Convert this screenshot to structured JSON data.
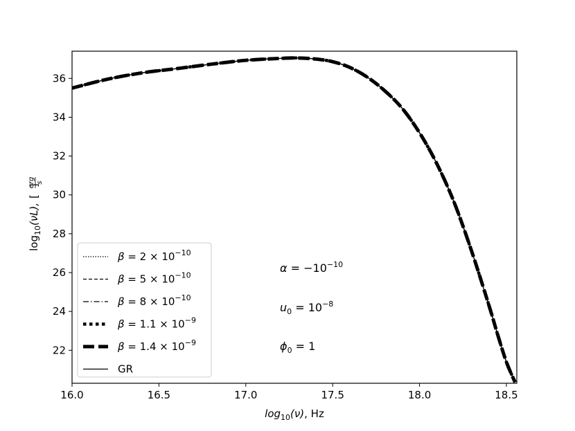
{
  "chart_data": {
    "type": "line",
    "xlabel": {
      "fn": "log",
      "sub": "10",
      "arg": "(ν)",
      "unit": ",  Hz"
    },
    "ylabel": {
      "fn": "log",
      "sub": "10",
      "arg": "(νL),",
      "unit_num": "erg",
      "unit_den": "s"
    },
    "xlim": [
      16.0,
      18.56
    ],
    "ylim": [
      20.3,
      37.4
    ],
    "x_ticks": [
      "16.0",
      "16.5",
      "17.0",
      "17.5",
      "18.0",
      "18.5"
    ],
    "y_ticks": [
      "22",
      "24",
      "26",
      "28",
      "30",
      "32",
      "34",
      "36"
    ],
    "grid": false,
    "legend_position": "lower-left",
    "x": [
      16.0,
      16.2,
      16.4,
      16.6,
      16.8,
      17.0,
      17.2,
      17.3,
      17.4,
      17.5,
      17.6,
      17.7,
      17.8,
      17.9,
      18.0,
      18.1,
      18.2,
      18.3,
      18.4,
      18.45,
      18.5,
      18.55
    ],
    "y_gr": [
      35.5,
      35.95,
      36.28,
      36.5,
      36.73,
      36.93,
      37.03,
      37.05,
      37.0,
      36.86,
      36.56,
      36.06,
      35.36,
      34.46,
      33.2,
      31.6,
      29.6,
      27.1,
      24.3,
      22.8,
      21.4,
      20.35
    ],
    "series": [
      {
        "label_parts": [
          "β = 2 × 10",
          "−10"
        ],
        "style": "dotted"
      },
      {
        "label_parts": [
          "β = 5 × 10",
          "−10"
        ],
        "style": "dashed"
      },
      {
        "label_parts": [
          "β = 8 × 10",
          "−10"
        ],
        "style": "dashdot"
      },
      {
        "label_parts": [
          "β = 1.1 × 10",
          "−9"
        ],
        "style": "thick-dotted"
      },
      {
        "label_parts": [
          "β = 1.4 × 10",
          "−9"
        ],
        "style": "thick-dashed"
      },
      {
        "label_parts": [
          "GR",
          ""
        ],
        "style": "solid"
      }
    ],
    "annotations": [
      {
        "base": "α = −10",
        "sup": "−10",
        "sub": ""
      },
      {
        "base": "u",
        "sub": "0",
        "rest": " = 10",
        "sup": "−8"
      },
      {
        "base": "ϕ",
        "sub": "0",
        "rest": " = 1",
        "sup": ""
      }
    ]
  }
}
